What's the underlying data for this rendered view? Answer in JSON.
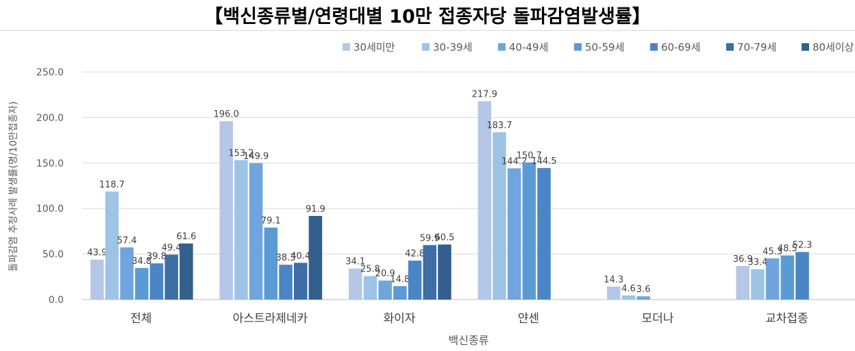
{
  "chart_data": {
    "type": "bar",
    "title": "【백신종류별/연령대별 10만 접종자당 돌파감염발생률】",
    "xlabel": "백신종류",
    "ylabel": "돌파감염 추정사례 발생률(명/10만접종자)",
    "ylim": [
      0,
      250
    ],
    "yticks": [
      "0.0",
      "50.0",
      "100.0",
      "150.0",
      "200.0",
      "250.0"
    ],
    "grid": true,
    "legend_position": "top-right",
    "categories": [
      "전체",
      "아스트라제네카",
      "화이자",
      "얀센",
      "모더나",
      "교차접종"
    ],
    "series": [
      {
        "name": "30세미만",
        "color": "#b4c7e7",
        "values": [
          43.9,
          196.0,
          34.1,
          217.9,
          14.3,
          36.9
        ]
      },
      {
        "name": "30-39세",
        "color": "#9dc3e6",
        "values": [
          118.7,
          153.2,
          25.8,
          183.7,
          4.6,
          33.4
        ]
      },
      {
        "name": "40-49세",
        "color": "#6fa5dc",
        "values": [
          57.4,
          149.9,
          20.9,
          144.2,
          3.6,
          45.3
        ]
      },
      {
        "name": "50-59세",
        "color": "#5b9bd5",
        "values": [
          34.8,
          79.1,
          14.8,
          150.7,
          null,
          48.5
        ]
      },
      {
        "name": "60-69세",
        "color": "#4a86c5",
        "values": [
          39.8,
          38.3,
          42.8,
          144.5,
          null,
          52.3
        ]
      },
      {
        "name": "70-79세",
        "color": "#3d6fa6",
        "values": [
          49.4,
          40.4,
          59.9,
          null,
          null,
          null
        ]
      },
      {
        "name": "80세이상",
        "color": "#335f8e",
        "values": [
          61.6,
          91.9,
          60.5,
          null,
          null,
          null
        ]
      }
    ]
  }
}
